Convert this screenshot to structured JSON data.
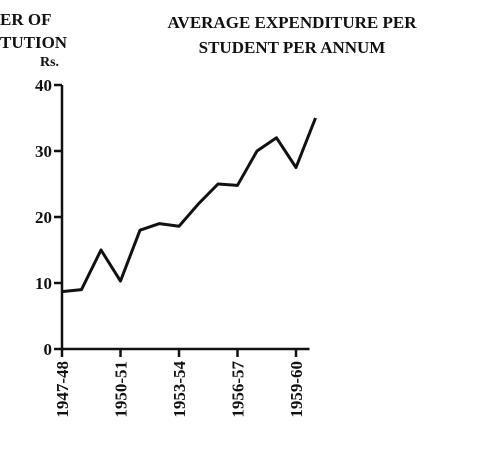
{
  "chart_data": {
    "type": "line",
    "title": [
      "AVERAGE EXPENDITURE PER",
      "STUDENT PER ANNUM"
    ],
    "side_heading": [
      "ER OF",
      "TUTION"
    ],
    "y_label": "Rs.",
    "categories": [
      "1947-48",
      null,
      null,
      "1950-51",
      null,
      null,
      "1953-54",
      null,
      null,
      "1956-57",
      null,
      null,
      "1959-60",
      null
    ],
    "series": [
      {
        "name": "Average expenditure per student per annum",
        "color": "#111111",
        "values": [
          8.7,
          9,
          15,
          10.3,
          18,
          19,
          18.6,
          22,
          25,
          24.8,
          30,
          32,
          27.5,
          35
        ]
      }
    ],
    "ylim": [
      0,
      40
    ],
    "yticks": [
      0,
      10,
      20,
      30,
      40
    ]
  }
}
